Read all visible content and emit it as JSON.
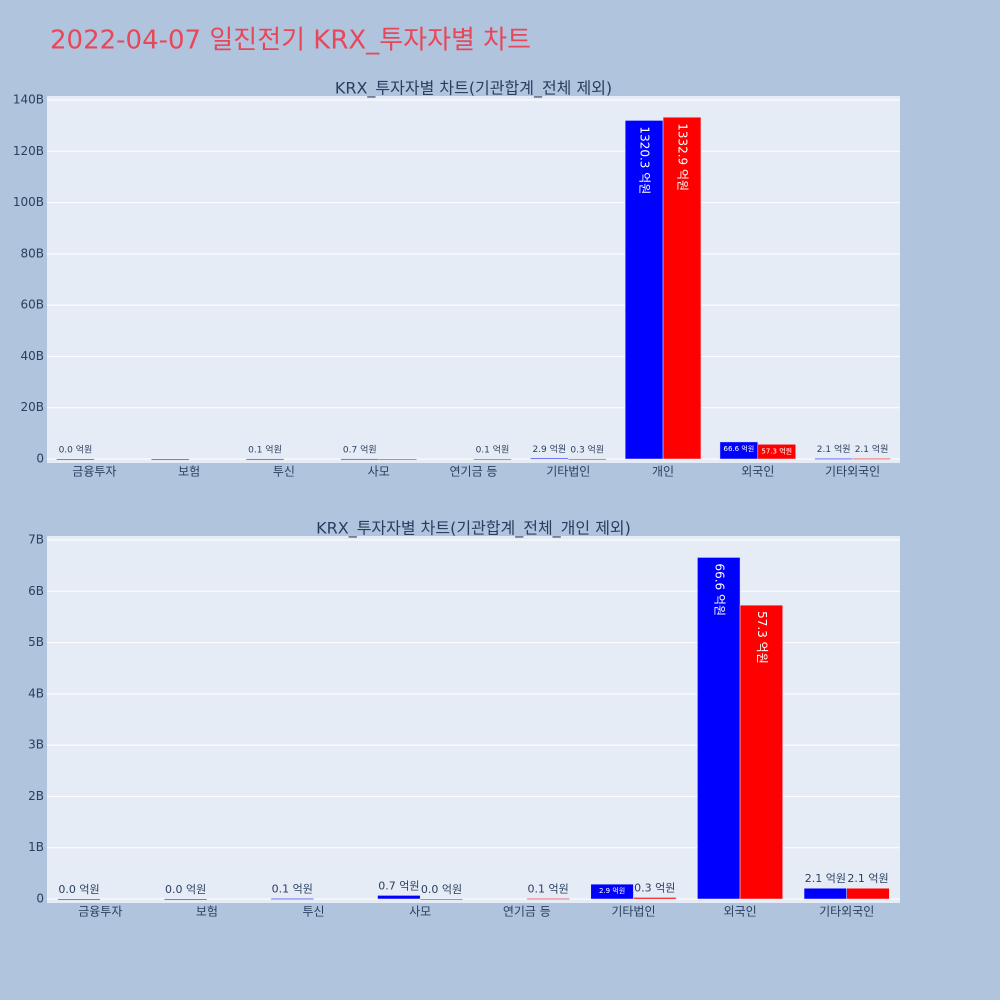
{
  "title": "2022-04-07 일진전기 KRX_투자자별 차트",
  "chart_data": [
    {
      "type": "bar",
      "title": "KRX_투자자별 차트(기관합계_전체 제외)",
      "categories": [
        "금융투자",
        "보험",
        "투신",
        "사모",
        "연기금 등",
        "기타법인",
        "개인",
        "외국인",
        "기타외국인"
      ],
      "series": [
        {
          "color": "#0000ff",
          "values": [
            0,
            0,
            10000000,
            70000000,
            null,
            290000000,
            132030000000,
            6660000000,
            210000000
          ],
          "value_labels": [
            "0.0 억원",
            null,
            "0.1 억원",
            "0.7 억원",
            null,
            "2.9 억원",
            "1320.3 억원",
            "66.6 억원",
            "2.1 억원"
          ]
        },
        {
          "color": "#ff0000",
          "values": [
            null,
            null,
            null,
            0,
            10000000,
            30000000,
            133290000000,
            5730000000,
            210000000
          ],
          "value_labels": [
            null,
            null,
            null,
            null,
            "0.1 억원",
            "0.3 억원",
            "1332.9 억원",
            "57.3 억원",
            "2.1 억원"
          ]
        }
      ],
      "ylim": [
        0,
        140000000000
      ],
      "yticks": [
        0,
        {
          "value": 20000000000,
          "label": "20B"
        },
        {
          "value": 40000000000,
          "label": "40B"
        },
        {
          "value": 60000000000,
          "label": "60B"
        },
        {
          "value": 80000000000,
          "label": "80B"
        },
        {
          "value": 100000000000,
          "label": "100B"
        },
        {
          "value": 120000000000,
          "label": "120B"
        },
        {
          "value": 140000000000,
          "label": "140B"
        }
      ],
      "grid": true
    },
    {
      "type": "bar",
      "title": "KRX_투자자별 차트(기관합계_전체_개인 제외)",
      "categories": [
        "금융투자",
        "보험",
        "투신",
        "사모",
        "연기금 등",
        "기타법인",
        "외국인",
        "기타외국인"
      ],
      "series": [
        {
          "color": "#0000ff",
          "values": [
            0,
            0,
            10000000,
            70000000,
            null,
            290000000,
            6660000000,
            210000000
          ],
          "value_labels": [
            "0.0 억원",
            "0.0 억원",
            "0.1 억원",
            "0.7 억원",
            null,
            "2.9 억원",
            "66.6 억원",
            "2.1 억원"
          ]
        },
        {
          "color": "#ff0000",
          "values": [
            null,
            null,
            null,
            0,
            10000000,
            30000000,
            5730000000,
            210000000
          ],
          "value_labels": [
            null,
            null,
            null,
            "0.0 억원",
            "0.1 억원",
            "0.3 억원",
            "57.3 억원",
            "2.1 억원"
          ]
        }
      ],
      "ylim": [
        0,
        7000000000
      ],
      "yticks": [
        0,
        {
          "value": 1000000000,
          "label": "1B"
        },
        {
          "value": 2000000000,
          "label": "2B"
        },
        {
          "value": 3000000000,
          "label": "3B"
        },
        {
          "value": 4000000000,
          "label": "4B"
        },
        {
          "value": 5000000000,
          "label": "5B"
        },
        {
          "value": 6000000000,
          "label": "6B"
        },
        {
          "value": 7000000000,
          "label": "7B"
        }
      ],
      "grid": true
    }
  ]
}
